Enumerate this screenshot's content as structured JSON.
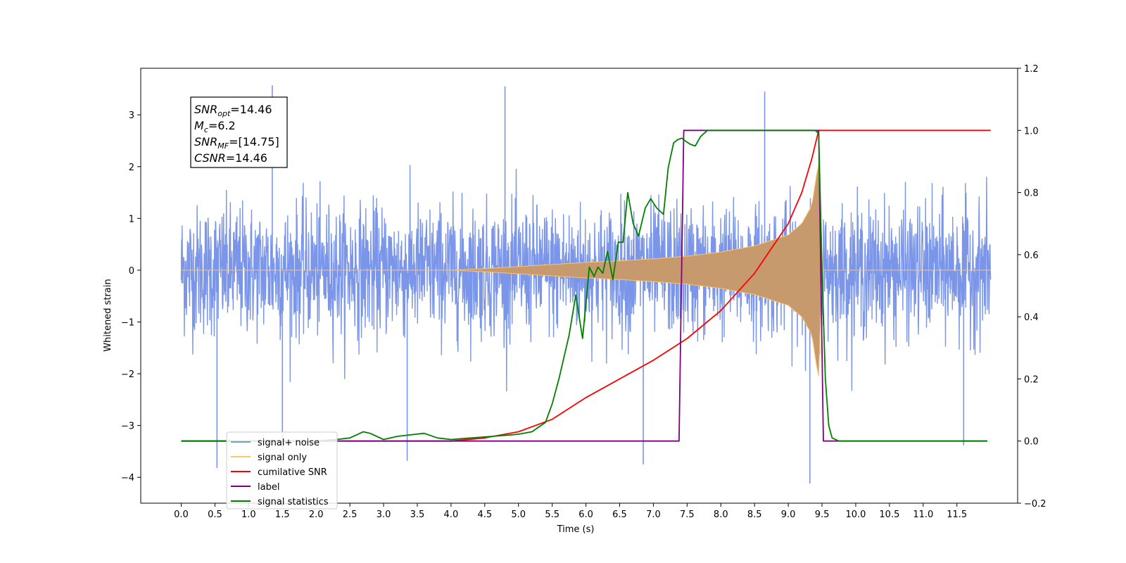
{
  "chart_data": {
    "type": "line",
    "xlabel": "Time (s)",
    "ylabel": "Whitened strain",
    "xlim": [
      -0.6,
      12.4
    ],
    "ylim": [
      -4.5,
      3.9
    ],
    "y2lim": [
      -0.2,
      1.2
    ],
    "x_ticks": [
      0.0,
      0.5,
      1.0,
      1.5,
      2.0,
      2.5,
      3.0,
      3.5,
      4.0,
      4.5,
      5.0,
      5.5,
      6.0,
      6.5,
      7.0,
      7.5,
      8.0,
      8.5,
      9.0,
      9.5,
      10.0,
      10.5,
      11.0,
      11.5
    ],
    "x_tick_labels": [
      "0.0",
      "0.5",
      "1.0",
      "1.5",
      "2.0",
      "2.5",
      "3.0",
      "3.5",
      "4.0",
      "4.5",
      "5.0",
      "5.5",
      "6.0",
      "6.5",
      "7.0",
      "7.5",
      "8.0",
      "8.5",
      "9.0",
      "9.5",
      "10.0",
      "10.5",
      "11.0",
      "11.5"
    ],
    "y_ticks": [
      -4,
      -3,
      -2,
      -1,
      0,
      1,
      2,
      3
    ],
    "y_tick_labels": [
      "−4",
      "−3",
      "−2",
      "−1",
      "0",
      "1",
      "2",
      "3"
    ],
    "y2_ticks": [
      -0.2,
      0.0,
      0.2,
      0.4,
      0.6,
      0.8,
      1.0,
      1.2
    ],
    "y2_tick_labels": [
      "−0.2",
      "0.0",
      "0.2",
      "0.4",
      "0.6",
      "0.8",
      "1.0",
      "1.2"
    ],
    "legend_position": "lower-left",
    "annotation": [
      {
        "main": "SNR",
        "sub": "opt",
        "value": "=14.46"
      },
      {
        "main": "M",
        "sub": "c",
        "value": "=6.2"
      },
      {
        "main": "SNR",
        "sub": "MF",
        "value": "=[14.75]"
      },
      {
        "main": "CSNR",
        "sub": "",
        "value": "=14.46"
      }
    ],
    "series": [
      {
        "name": "signal+ noise",
        "color": "#7b96e8",
        "axis": "left",
        "kind": "noise",
        "x_range": [
          0.0,
          12.0
        ],
        "envelope": 1.8,
        "spikes": [
          [
            1.35,
            3.57
          ],
          [
            4.8,
            3.55
          ],
          [
            8.65,
            3.45
          ],
          [
            0.53,
            -3.82
          ],
          [
            1.5,
            -3.72
          ],
          [
            3.35,
            -3.68
          ],
          [
            6.85,
            -3.75
          ],
          [
            9.32,
            -4.12
          ],
          [
            11.6,
            -3.38
          ]
        ]
      },
      {
        "name": "signal only",
        "color": "#c79a6e",
        "axis": "left",
        "kind": "chirp",
        "x": [
          0.0,
          4.0,
          4.5,
          5.0,
          5.5,
          6.0,
          6.5,
          7.0,
          7.5,
          8.0,
          8.5,
          9.0,
          9.2,
          9.35,
          9.42,
          9.45,
          9.5,
          12.0
        ],
        "envelope": [
          0.0,
          0.0,
          0.03,
          0.07,
          0.11,
          0.15,
          0.18,
          0.22,
          0.27,
          0.35,
          0.47,
          0.68,
          0.9,
          1.25,
          1.85,
          2.05,
          0.0,
          0.0
        ]
      },
      {
        "name": "cumilative SNR",
        "color": "#ff0000",
        "axis": "right",
        "x": [
          0.0,
          4.0,
          4.5,
          5.0,
          5.5,
          6.0,
          6.5,
          7.0,
          7.5,
          8.0,
          8.5,
          9.0,
          9.2,
          9.35,
          9.45,
          12.0
        ],
        "y": [
          0.0,
          0.0,
          0.01,
          0.03,
          0.07,
          0.14,
          0.2,
          0.26,
          0.33,
          0.42,
          0.54,
          0.7,
          0.8,
          0.91,
          1.0,
          1.0
        ]
      },
      {
        "name": "label",
        "color": "#800080",
        "axis": "right",
        "x": [
          0.0,
          7.38,
          7.45,
          9.45,
          9.52,
          11.95
        ],
        "y": [
          0.0,
          0.0,
          1.0,
          1.0,
          0.0,
          0.0
        ]
      },
      {
        "name": "signal statistics",
        "color": "#008000",
        "axis": "right",
        "x": [
          0.0,
          2.0,
          2.3,
          2.5,
          2.7,
          2.8,
          3.0,
          3.2,
          3.4,
          3.6,
          3.8,
          4.0,
          4.3,
          4.6,
          4.9,
          5.0,
          5.2,
          5.4,
          5.5,
          5.6,
          5.75,
          5.85,
          5.95,
          6.05,
          6.12,
          6.18,
          6.25,
          6.32,
          6.4,
          6.48,
          6.55,
          6.62,
          6.7,
          6.78,
          6.88,
          6.96,
          7.05,
          7.15,
          7.22,
          7.3,
          7.36,
          7.42,
          7.48,
          7.55,
          7.62,
          7.7,
          7.8,
          8.0,
          9.4,
          9.45,
          9.5,
          9.55,
          9.6,
          9.65,
          9.75,
          11.95
        ],
        "y": [
          0.0,
          0.0,
          0.005,
          0.01,
          0.03,
          0.025,
          0.005,
          0.015,
          0.02,
          0.025,
          0.01,
          0.005,
          0.01,
          0.015,
          0.02,
          0.022,
          0.03,
          0.06,
          0.12,
          0.2,
          0.34,
          0.47,
          0.33,
          0.56,
          0.53,
          0.56,
          0.54,
          0.61,
          0.52,
          0.64,
          0.64,
          0.8,
          0.7,
          0.66,
          0.75,
          0.78,
          0.75,
          0.73,
          0.88,
          0.96,
          0.97,
          0.975,
          0.965,
          0.955,
          0.95,
          0.98,
          1.0,
          1.0,
          1.0,
          0.99,
          0.55,
          0.2,
          0.05,
          0.01,
          0.0,
          0.0
        ]
      }
    ],
    "legend": [
      {
        "label": "signal+ noise",
        "color": "#7b96e8"
      },
      {
        "label": "signal only",
        "color": "#ffc36b"
      },
      {
        "label": "cumilative SNR",
        "color": "#ff0000"
      },
      {
        "label": "label",
        "color": "#800080"
      },
      {
        "label": "signal statistics",
        "color": "#008000"
      }
    ]
  }
}
